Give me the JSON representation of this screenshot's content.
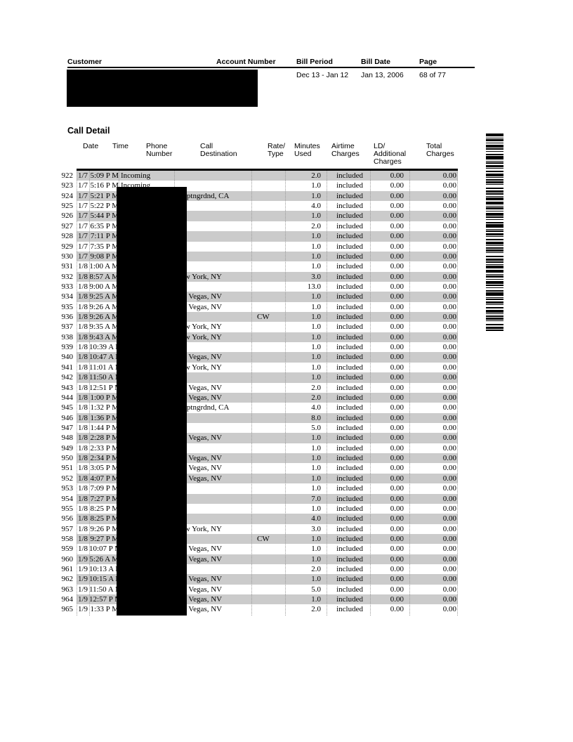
{
  "page_header": {
    "columns": [
      {
        "label": "Customer",
        "value": ""
      },
      {
        "label": "Account Number",
        "value": ""
      },
      {
        "label": "Bill Period",
        "value": "Dec 13 - Jan 12"
      },
      {
        "label": "Bill Date",
        "value": "Jan 13, 2006"
      },
      {
        "label": "Page",
        "value": "68 of 77"
      }
    ]
  },
  "section_title": "Call Detail",
  "table": {
    "columns": [
      {
        "label": "Date"
      },
      {
        "label": "Time"
      },
      {
        "label": "Phone\nNumber"
      },
      {
        "label": "Call\nDestination"
      },
      {
        "label": "Rate/\nType"
      },
      {
        "label": "Minutes\nUsed"
      },
      {
        "label": "Airtime\nCharges"
      },
      {
        "label": "LD/\nAdditional\nCharges"
      },
      {
        "label": "Total\nCharges"
      }
    ],
    "shared_row_values": {
      "airtime_charges": "included",
      "ld_additional_charges": "0.00",
      "total_charges": "0.00"
    },
    "rows": [
      {
        "num": "922",
        "date": "1/7",
        "time": "5:09 P M",
        "phone": "Incoming",
        "dest": "",
        "rate": "",
        "min": "2.0"
      },
      {
        "num": "923",
        "date": "1/7",
        "time": "5:16 P M",
        "phone": "Incoming",
        "dest": "",
        "rate": "",
        "min": "1.0"
      },
      {
        "num": "924",
        "date": "1/7",
        "time": "5:21 P M",
        "phone": "",
        "dest": "Cmptngrdnd, CA",
        "rate": "",
        "min": "1.0"
      },
      {
        "num": "925",
        "date": "1/7",
        "time": "5:22 P M",
        "phone": "",
        "dest": "",
        "rate": "",
        "min": "4.0"
      },
      {
        "num": "926",
        "date": "1/7",
        "time": "5:44 P M",
        "phone": "",
        "dest": "",
        "rate": "",
        "min": "1.0"
      },
      {
        "num": "927",
        "date": "1/7",
        "time": "6:35 P M",
        "phone": "",
        "dest": "",
        "rate": "",
        "min": "2.0"
      },
      {
        "num": "928",
        "date": "1/7",
        "time": "7:11 P M",
        "phone": "",
        "dest": "",
        "rate": "",
        "min": "1.0"
      },
      {
        "num": "929",
        "date": "1/7",
        "time": "7:35 P M",
        "phone": "",
        "dest": "",
        "rate": "",
        "min": "1.0"
      },
      {
        "num": "930",
        "date": "1/7",
        "time": "9:08 P M",
        "phone": "",
        "dest": "",
        "rate": "",
        "min": "1.0"
      },
      {
        "num": "931",
        "date": "1/8",
        "time": "1:00 A M",
        "phone": "",
        "dest": "",
        "rate": "",
        "min": "1.0"
      },
      {
        "num": "932",
        "date": "1/8",
        "time": "8:57 A M",
        "phone": "",
        "dest": "New York, NY",
        "rate": "",
        "min": "3.0"
      },
      {
        "num": "933",
        "date": "1/8",
        "time": "9:00 A M",
        "phone": "",
        "dest": "",
        "rate": "",
        "min": "13.0"
      },
      {
        "num": "934",
        "date": "1/8",
        "time": "9:25 A M",
        "phone": "",
        "dest": "Las Vegas, NV",
        "rate": "",
        "min": "1.0"
      },
      {
        "num": "935",
        "date": "1/8",
        "time": "9:26 A M",
        "phone": "",
        "dest": "Las Vegas, NV",
        "rate": "",
        "min": "1.0"
      },
      {
        "num": "936",
        "date": "1/8",
        "time": "9:26 A M",
        "phone": "",
        "dest": "",
        "rate": "CW",
        "min": "1.0"
      },
      {
        "num": "937",
        "date": "1/8",
        "time": "9:35 A M",
        "phone": "",
        "dest": "New York, NY",
        "rate": "",
        "min": "1.0"
      },
      {
        "num": "938",
        "date": "1/8",
        "time": "9:43 A M",
        "phone": "",
        "dest": "New York, NY",
        "rate": "",
        "min": "1.0"
      },
      {
        "num": "939",
        "date": "1/8",
        "time": "10:39 A M",
        "phone": "",
        "dest": "",
        "rate": "",
        "min": "1.0"
      },
      {
        "num": "940",
        "date": "1/8",
        "time": "10:47 A M",
        "phone": "",
        "dest": "Las Vegas, NV",
        "rate": "",
        "min": "1.0"
      },
      {
        "num": "941",
        "date": "1/8",
        "time": "11:01 A M",
        "phone": "",
        "dest": "New York, NY",
        "rate": "",
        "min": "1.0"
      },
      {
        "num": "942",
        "date": "1/8",
        "time": "11:50 A M",
        "phone": "",
        "dest": "",
        "rate": "",
        "min": "1.0"
      },
      {
        "num": "943",
        "date": "1/8",
        "time": "12:51 P M",
        "phone": "",
        "dest": "Las Vegas, NV",
        "rate": "",
        "min": "2.0"
      },
      {
        "num": "944",
        "date": "1/8",
        "time": "1:00 P M",
        "phone": "",
        "dest": "Las Vegas, NV",
        "rate": "",
        "min": "2.0"
      },
      {
        "num": "945",
        "date": "1/8",
        "time": "1:32 P M",
        "phone": "",
        "dest": "Cmptngrdnd, CA",
        "rate": "",
        "min": "4.0"
      },
      {
        "num": "946",
        "date": "1/8",
        "time": "1:36 P M",
        "phone": "",
        "dest": "",
        "rate": "",
        "min": "8.0"
      },
      {
        "num": "947",
        "date": "1/8",
        "time": "1:44 P M",
        "phone": "",
        "dest": "",
        "rate": "",
        "min": "5.0"
      },
      {
        "num": "948",
        "date": "1/8",
        "time": "2:28 P M",
        "phone": "",
        "dest": "Las Vegas, NV",
        "rate": "",
        "min": "1.0"
      },
      {
        "num": "949",
        "date": "1/8",
        "time": "2:33 P M",
        "phone": "",
        "dest": "",
        "rate": "",
        "min": "1.0"
      },
      {
        "num": "950",
        "date": "1/8",
        "time": "2:34 P M",
        "phone": "",
        "dest": "Las Vegas, NV",
        "rate": "",
        "min": "1.0"
      },
      {
        "num": "951",
        "date": "1/8",
        "time": "3:05 P M",
        "phone": "",
        "dest": "Las Vegas, NV",
        "rate": "",
        "min": "1.0"
      },
      {
        "num": "952",
        "date": "1/8",
        "time": "4:07 P M",
        "phone": "",
        "dest": "Las Vegas, NV",
        "rate": "",
        "min": "1.0"
      },
      {
        "num": "953",
        "date": "1/8",
        "time": "7:09 P M",
        "phone": "",
        "dest": "",
        "rate": "",
        "min": "1.0"
      },
      {
        "num": "954",
        "date": "1/8",
        "time": "7:27 P M",
        "phone": "",
        "dest": "",
        "rate": "",
        "min": "7.0"
      },
      {
        "num": "955",
        "date": "1/8",
        "time": "8:25 P M",
        "phone": "",
        "dest": "",
        "rate": "",
        "min": "1.0"
      },
      {
        "num": "956",
        "date": "1/8",
        "time": "8:25 P M",
        "phone": "",
        "dest": "",
        "rate": "",
        "min": "4.0"
      },
      {
        "num": "957",
        "date": "1/8",
        "time": "9:26 P M",
        "phone": "",
        "dest": "New York, NY",
        "rate": "",
        "min": "3.0"
      },
      {
        "num": "958",
        "date": "1/8",
        "time": "9:27 P M",
        "phone": "",
        "dest": "",
        "rate": "CW",
        "min": "1.0"
      },
      {
        "num": "959",
        "date": "1/8",
        "time": "10:07 P M",
        "phone": "",
        "dest": "Las Vegas, NV",
        "rate": "",
        "min": "1.0"
      },
      {
        "num": "960",
        "date": "1/9",
        "time": "5:26 A M",
        "phone": "",
        "dest": "Las Vegas, NV",
        "rate": "",
        "min": "1.0"
      },
      {
        "num": "961",
        "date": "1/9",
        "time": "10:13 A M",
        "phone": "",
        "dest": "",
        "rate": "",
        "min": "2.0"
      },
      {
        "num": "962",
        "date": "1/9",
        "time": "10:15 A M",
        "phone": "",
        "dest": "Las Vegas, NV",
        "rate": "",
        "min": "1.0"
      },
      {
        "num": "963",
        "date": "1/9",
        "time": "11:50 A M",
        "phone": "",
        "dest": "Las Vegas, NV",
        "rate": "",
        "min": "5.0"
      },
      {
        "num": "964",
        "date": "1/9",
        "time": "12:57 P M",
        "phone": "",
        "dest": "Las Vegas, NV",
        "rate": "",
        "min": "1.0"
      },
      {
        "num": "965",
        "date": "1/9",
        "time": "1:33 P M",
        "phone": "",
        "dest": "Las Vegas, NV",
        "rate": "",
        "min": "2.0"
      }
    ]
  },
  "barcode_pattern": [
    4,
    2,
    1,
    1,
    3,
    2,
    1,
    2,
    4,
    1,
    2,
    2,
    1,
    3,
    2,
    1,
    5,
    2,
    1,
    1,
    2,
    2,
    3,
    1,
    1,
    3,
    2,
    2,
    4,
    1,
    1,
    2,
    2,
    1,
    3,
    1,
    1,
    4,
    2,
    2,
    3,
    1,
    2,
    2,
    1,
    1,
    4,
    2
  ]
}
